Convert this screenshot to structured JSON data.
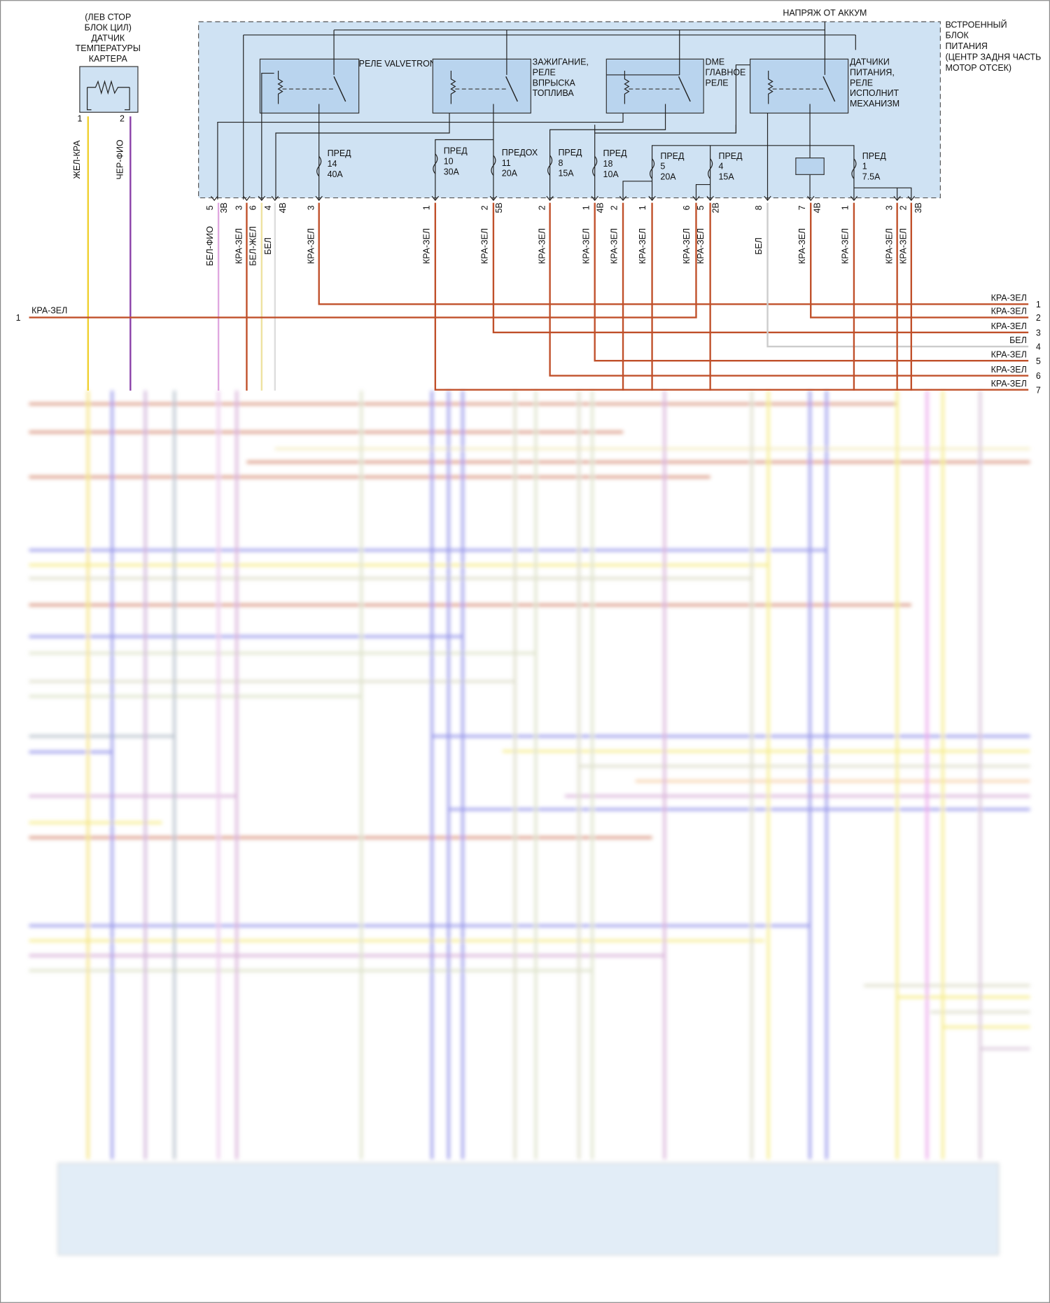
{
  "sensor": {
    "title": [
      "(ЛЕВ СТОР",
      "БЛОК ЦИЛ)",
      "ДАТЧИК",
      "ТЕМПЕРАТУРЫ",
      "КАРТЕРА"
    ],
    "pins": [
      "1",
      "2"
    ],
    "wires": [
      "ЖЕЛ-КРА",
      "ЧЕР-ФИО"
    ]
  },
  "power_box": {
    "supply": "НАПРЯЖ ОТ АККУМ",
    "title": [
      "ВСТРОЕННЫЙ",
      "БЛОК",
      "ПИТАНИЯ",
      "(ЦЕНТР ЗАДНЯ ЧАСТЬ",
      "МОТОР ОТСЕК)"
    ],
    "relays": [
      [
        "РЕЛЕ VALVETRONIC"
      ],
      [
        "ЗАЖИГАНИЕ,",
        "РЕЛЕ",
        "ВПРЫСКА",
        "ТОПЛИВА"
      ],
      [
        "DME",
        "ГЛАВНОЕ",
        "РЕЛЕ"
      ],
      [
        "ДАТЧИКИ",
        "ПИТАНИЯ,",
        "РЕЛЕ",
        "ИСПОЛНИТ",
        "МЕХАНИЗМ"
      ]
    ],
    "fuses": [
      [
        "ПРЕД",
        "14",
        "40A"
      ],
      [
        "ПРЕД",
        "10",
        "30A"
      ],
      [
        "ПРЕДОХ",
        "11",
        "20A"
      ],
      [
        "ПРЕД",
        "8",
        "15A"
      ],
      [
        "ПРЕД",
        "18",
        "10A"
      ],
      [
        "ПРЕД",
        "5",
        "20A"
      ],
      [
        "ПРЕД",
        "4",
        "15A"
      ],
      [
        "ПРЕД",
        "1",
        "7.5A"
      ]
    ],
    "pins": [
      "5",
      "3В",
      "3",
      "6",
      "4",
      "4В",
      "3",
      "1",
      "2",
      "5В",
      "2",
      "1",
      "4В",
      "2",
      "1",
      "6",
      "5",
      "2В",
      "8",
      "7",
      "4В",
      "1",
      "3",
      "2",
      "3В"
    ],
    "wire_labels": [
      "БЕЛ-ФИО",
      "КРА-ЗЕЛ",
      "БЕЛ-ЖЕЛ",
      "БЕЛ",
      "КРА-ЗЕЛ",
      "КРА-ЗЕЛ",
      "КРА-ЗЕЛ",
      "КРА-ЗЕЛ",
      "КРА-ЗЕЛ",
      "КРА-ЗЕЛ",
      "КРА-ЗЕЛ",
      "КРА-ЗЕЛ",
      "КРА-ЗЕЛ",
      "БЕЛ",
      "КРА-ЗЕЛ",
      "КРА-ЗЕЛ",
      "КРА-ЗЕЛ",
      "КРА-ЗЕЛ"
    ]
  },
  "left_connector": {
    "pin": "1",
    "wire": "КРА-ЗЕЛ"
  },
  "right_connector": {
    "wires": [
      "КРА-ЗЕЛ",
      "КРА-ЗЕЛ",
      "КРА-ЗЕЛ",
      "БЕЛ",
      "КРА-ЗЕЛ",
      "КРА-ЗЕЛ",
      "КРА-ЗЕЛ"
    ],
    "pins": [
      "1",
      "2",
      "3",
      "4",
      "5",
      "6",
      "7"
    ]
  }
}
